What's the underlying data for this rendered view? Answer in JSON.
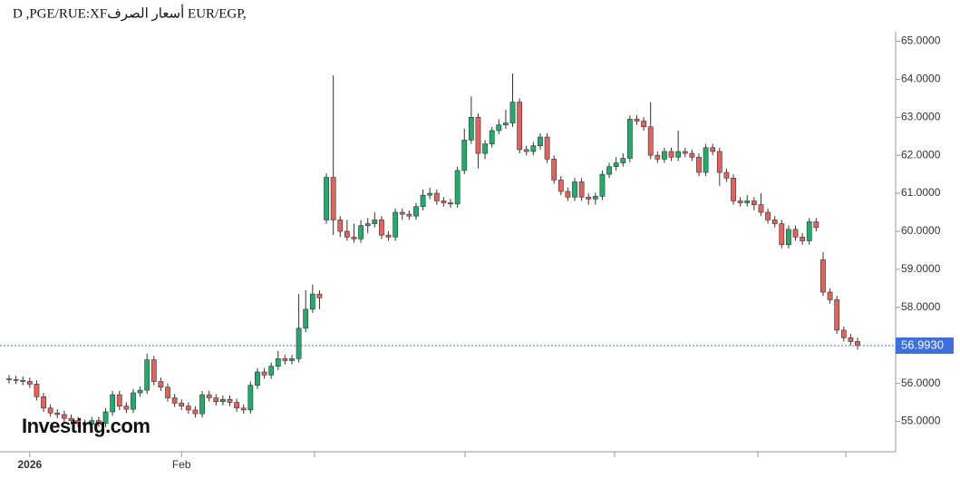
{
  "chart_data": {
    "type": "candlestick",
    "title": "D ,PGE/RUE:XFأسعار الصرف EUR/EGP,",
    "watermark": "Investing.com",
    "up_color": "#20ad6b",
    "down_color": "#e8605a",
    "ylim": [
      54.2,
      65.25
    ],
    "yticks": [
      {
        "value": 55,
        "label": "55.0000"
      },
      {
        "value": 56,
        "label": "56.0000"
      },
      {
        "value": 57,
        "label": "57.0000"
      },
      {
        "value": 58,
        "label": "58.0000"
      },
      {
        "value": 59,
        "label": "59.0000"
      },
      {
        "value": 60,
        "label": "60.0000"
      },
      {
        "value": 61,
        "label": "61.0000"
      },
      {
        "value": 62,
        "label": "62.0000"
      },
      {
        "value": 63,
        "label": "63.0000"
      },
      {
        "value": 64,
        "label": "64.0000"
      },
      {
        "value": 65,
        "label": "65.0000"
      }
    ],
    "last_price": {
      "value": 56.993,
      "label": "56.9930",
      "color": "#3d6fe0"
    },
    "categories": [
      null,
      null,
      null,
      "2026",
      null,
      null,
      null,
      null,
      null,
      null,
      null,
      null,
      null,
      null,
      null,
      null,
      null,
      null,
      null,
      null,
      null,
      null,
      null,
      null,
      null,
      "Feb",
      null,
      null,
      null,
      null,
      null,
      null,
      null,
      null,
      null,
      null,
      null,
      null,
      null,
      null,
      null,
      null,
      null,
      null,
      null,
      null,
      null,
      null,
      null,
      null,
      null,
      null,
      null,
      null,
      null,
      null,
      null,
      null,
      null,
      null,
      null,
      null,
      null,
      null,
      null,
      null,
      null,
      null,
      null,
      null,
      null,
      null,
      null,
      null,
      null,
      null,
      null,
      null,
      null,
      null,
      null,
      null,
      null,
      null,
      null,
      null,
      null,
      null,
      null,
      null,
      null,
      null,
      null,
      null,
      null,
      null,
      null,
      null,
      null,
      null,
      null,
      null,
      null,
      null,
      null,
      null,
      null,
      null,
      null,
      null,
      null,
      null,
      null,
      null,
      null,
      null,
      null,
      null,
      null,
      null,
      null,
      null,
      null,
      null
    ],
    "open": [
      56.12,
      56.1,
      56.08,
      56.05,
      55.98,
      55.65,
      55.35,
      55.22,
      55.18,
      55.08,
      55.02,
      54.95,
      54.92,
      55.02,
      54.95,
      55.25,
      55.7,
      55.4,
      55.32,
      55.75,
      55.82,
      56.62,
      56.05,
      55.9,
      55.62,
      55.48,
      55.4,
      55.3,
      55.2,
      55.7,
      55.62,
      55.52,
      55.58,
      55.5,
      55.35,
      55.3,
      55.95,
      56.3,
      56.22,
      56.45,
      56.65,
      56.6,
      56.65,
      57.45,
      57.95,
      58.35,
      60.3,
      61.42,
      60.3,
      60.0,
      59.85,
      59.8,
      60.15,
      60.2,
      60.3,
      59.9,
      59.85,
      60.5,
      60.45,
      60.4,
      60.65,
      60.95,
      61.0,
      60.8,
      60.75,
      60.72,
      61.6,
      62.4,
      63.0,
      62.05,
      62.3,
      62.65,
      62.8,
      62.85,
      63.4,
      62.15,
      62.1,
      62.25,
      62.48,
      61.9,
      61.35,
      61.05,
      60.9,
      61.3,
      60.9,
      60.85,
      60.92,
      61.5,
      61.7,
      61.8,
      61.92,
      62.95,
      62.9,
      62.75,
      62.0,
      61.9,
      62.1,
      61.95,
      62.1,
      62.05,
      61.95,
      61.55,
      62.2,
      62.1,
      61.55,
      61.4,
      60.8,
      60.75,
      60.8,
      60.7,
      60.5,
      60.3,
      60.2,
      59.65,
      60.05,
      59.85,
      59.75,
      60.25,
      59.25,
      58.4,
      58.2,
      57.4,
      57.2,
      57.1
    ],
    "high": [
      56.22,
      56.2,
      56.18,
      56.15,
      56.08,
      55.75,
      55.45,
      55.32,
      55.28,
      55.18,
      55.12,
      55.05,
      55.12,
      55.12,
      55.35,
      55.8,
      55.8,
      55.5,
      55.85,
      55.92,
      56.78,
      56.72,
      56.15,
      56.0,
      55.72,
      55.58,
      55.5,
      55.4,
      55.8,
      55.8,
      55.72,
      55.68,
      55.68,
      55.6,
      55.45,
      56.05,
      56.4,
      56.4,
      56.55,
      56.85,
      56.75,
      56.75,
      58.35,
      58.45,
      58.6,
      58.45,
      61.52,
      64.1,
      60.4,
      60.3,
      60.2,
      60.3,
      60.35,
      60.5,
      60.4,
      60.0,
      60.6,
      60.6,
      60.55,
      60.75,
      61.1,
      61.15,
      61.1,
      60.9,
      60.85,
      61.7,
      62.7,
      63.55,
      63.1,
      62.4,
      62.75,
      62.95,
      63.2,
      64.15,
      63.5,
      62.25,
      62.35,
      62.58,
      62.58,
      62.0,
      61.45,
      61.15,
      61.4,
      61.4,
      61.0,
      61.02,
      61.6,
      61.8,
      61.95,
      62.05,
      63.05,
      63.05,
      63.0,
      63.4,
      62.1,
      62.2,
      62.2,
      62.65,
      62.2,
      62.15,
      62.05,
      62.3,
      62.3,
      62.2,
      61.65,
      61.5,
      60.9,
      60.95,
      60.9,
      61.0,
      60.6,
      60.4,
      60.3,
      60.15,
      60.15,
      59.95,
      60.35,
      60.35,
      59.45,
      58.5,
      58.3,
      57.5,
      57.3,
      57.2
    ],
    "low": [
      56.0,
      55.98,
      55.95,
      55.88,
      55.55,
      55.25,
      55.12,
      55.08,
      54.98,
      54.92,
      54.85,
      54.82,
      54.82,
      54.85,
      54.85,
      55.15,
      55.3,
      55.22,
      55.22,
      55.65,
      55.72,
      55.95,
      55.8,
      55.52,
      55.38,
      55.3,
      55.2,
      55.1,
      55.1,
      55.52,
      55.42,
      55.42,
      55.4,
      55.25,
      55.2,
      55.2,
      55.85,
      56.12,
      56.12,
      56.35,
      56.5,
      56.5,
      56.55,
      57.35,
      57.85,
      57.95,
      60.2,
      59.9,
      59.85,
      59.75,
      59.7,
      59.7,
      59.95,
      60.1,
      59.8,
      59.75,
      59.75,
      60.3,
      60.3,
      60.3,
      60.55,
      60.85,
      60.7,
      60.65,
      60.62,
      60.62,
      61.5,
      62.3,
      61.65,
      61.9,
      62.2,
      62.55,
      62.7,
      62.75,
      62.05,
      62.0,
      62.0,
      62.15,
      61.8,
      61.25,
      60.95,
      60.8,
      60.8,
      60.8,
      60.7,
      60.7,
      60.82,
      61.4,
      61.6,
      61.7,
      61.82,
      62.8,
      62.65,
      61.9,
      61.8,
      61.8,
      61.85,
      61.85,
      61.95,
      61.85,
      61.45,
      61.45,
      62.0,
      61.2,
      61.3,
      60.7,
      60.65,
      60.65,
      60.55,
      60.4,
      60.2,
      60.1,
      59.55,
      59.55,
      59.75,
      59.65,
      59.65,
      60.0,
      58.3,
      58.1,
      57.3,
      57.1,
      57.0,
      56.89
    ],
    "close": [
      56.1,
      56.08,
      56.05,
      55.98,
      55.65,
      55.35,
      55.22,
      55.18,
      55.08,
      55.02,
      54.95,
      54.92,
      55.02,
      54.95,
      55.25,
      55.7,
      55.4,
      55.32,
      55.75,
      55.82,
      56.62,
      56.05,
      55.9,
      55.62,
      55.48,
      55.4,
      55.3,
      55.2,
      55.7,
      55.62,
      55.52,
      55.58,
      55.5,
      55.35,
      55.3,
      55.95,
      56.3,
      56.22,
      56.45,
      56.65,
      56.6,
      56.65,
      57.45,
      57.95,
      58.35,
      58.25,
      61.42,
      60.3,
      60.0,
      59.85,
      59.8,
      60.15,
      60.2,
      60.3,
      59.9,
      59.85,
      60.5,
      60.45,
      60.4,
      60.65,
      60.95,
      61.0,
      60.8,
      60.75,
      60.72,
      61.6,
      62.4,
      63.0,
      62.05,
      62.3,
      62.65,
      62.8,
      62.85,
      63.4,
      62.15,
      62.1,
      62.25,
      62.48,
      61.9,
      61.35,
      61.05,
      60.9,
      61.3,
      60.9,
      60.85,
      60.92,
      61.5,
      61.7,
      61.8,
      61.92,
      62.95,
      62.9,
      62.75,
      62.0,
      61.9,
      62.1,
      61.95,
      62.1,
      62.05,
      61.95,
      61.55,
      62.2,
      62.1,
      61.55,
      61.4,
      60.8,
      60.75,
      60.8,
      60.7,
      60.5,
      60.3,
      60.2,
      59.65,
      60.05,
      59.85,
      59.75,
      60.25,
      60.1,
      58.4,
      58.2,
      57.4,
      57.2,
      57.1,
      56.993
    ]
  }
}
